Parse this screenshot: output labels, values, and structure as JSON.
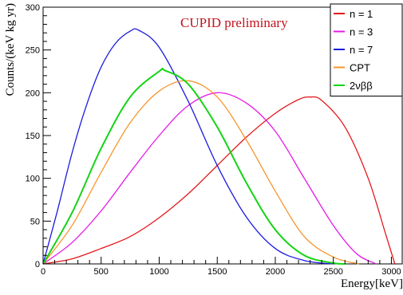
{
  "chart_data": {
    "type": "line",
    "xlabel": "Energy[keV]",
    "ylabel": "Counts/(keV kg yr)",
    "xlim": [
      0,
      3100
    ],
    "ylim": [
      0,
      300
    ],
    "x_ticks": [
      "0",
      "500",
      "1000",
      "1500",
      "2000",
      "2500",
      "3000"
    ],
    "y_ticks": [
      "0",
      "50",
      "100",
      "150",
      "200",
      "250",
      "300"
    ],
    "annotation": {
      "text": "CUPID preliminary",
      "color": "#c0141e"
    },
    "legend_position": "top-right",
    "series": [
      {
        "name": "n = 1",
        "color": "#e4181c",
        "x": [
          0,
          250,
          500,
          750,
          1000,
          1250,
          1500,
          1750,
          2000,
          2200,
          2300,
          2400,
          2600,
          2800,
          2950,
          3030
        ],
        "y": [
          0,
          6,
          18,
          32,
          54,
          82,
          115,
          148,
          176,
          192,
          195,
          191,
          160,
          100,
          35,
          0
        ]
      },
      {
        "name": "n = 3",
        "color": "#e619e6",
        "x": [
          0,
          250,
          500,
          750,
          1000,
          1250,
          1500,
          1750,
          2000,
          2250,
          2500,
          2700,
          2870
        ],
        "y": [
          0,
          25,
          62,
          107,
          150,
          185,
          200,
          188,
          155,
          100,
          45,
          12,
          0
        ]
      },
      {
        "name": "n = 7",
        "color": "#1a1ae0",
        "x": [
          0,
          125,
          250,
          375,
          500,
          625,
          750,
          825,
          1000,
          1250,
          1500,
          1750,
          2000,
          2250,
          2500
        ],
        "y": [
          0,
          63,
          130,
          186,
          230,
          258,
          272,
          273,
          253,
          190,
          115,
          55,
          18,
          4,
          0
        ]
      },
      {
        "name": "CPT",
        "color": "#f7962f",
        "x": [
          0,
          250,
          500,
          750,
          1000,
          1250,
          1500,
          1750,
          2000,
          2250,
          2500,
          2720
        ],
        "y": [
          0,
          45,
          107,
          165,
          202,
          214,
          195,
          145,
          85,
          32,
          8,
          0
        ]
      },
      {
        "name": "2νββ",
        "color": "#14d414",
        "x": [
          0,
          250,
          500,
          750,
          1000,
          1050,
          1250,
          1500,
          1750,
          2000,
          2250,
          2500,
          2600
        ],
        "y": [
          0,
          60,
          135,
          195,
          225,
          226,
          210,
          160,
          95,
          40,
          10,
          1,
          0
        ]
      }
    ]
  }
}
